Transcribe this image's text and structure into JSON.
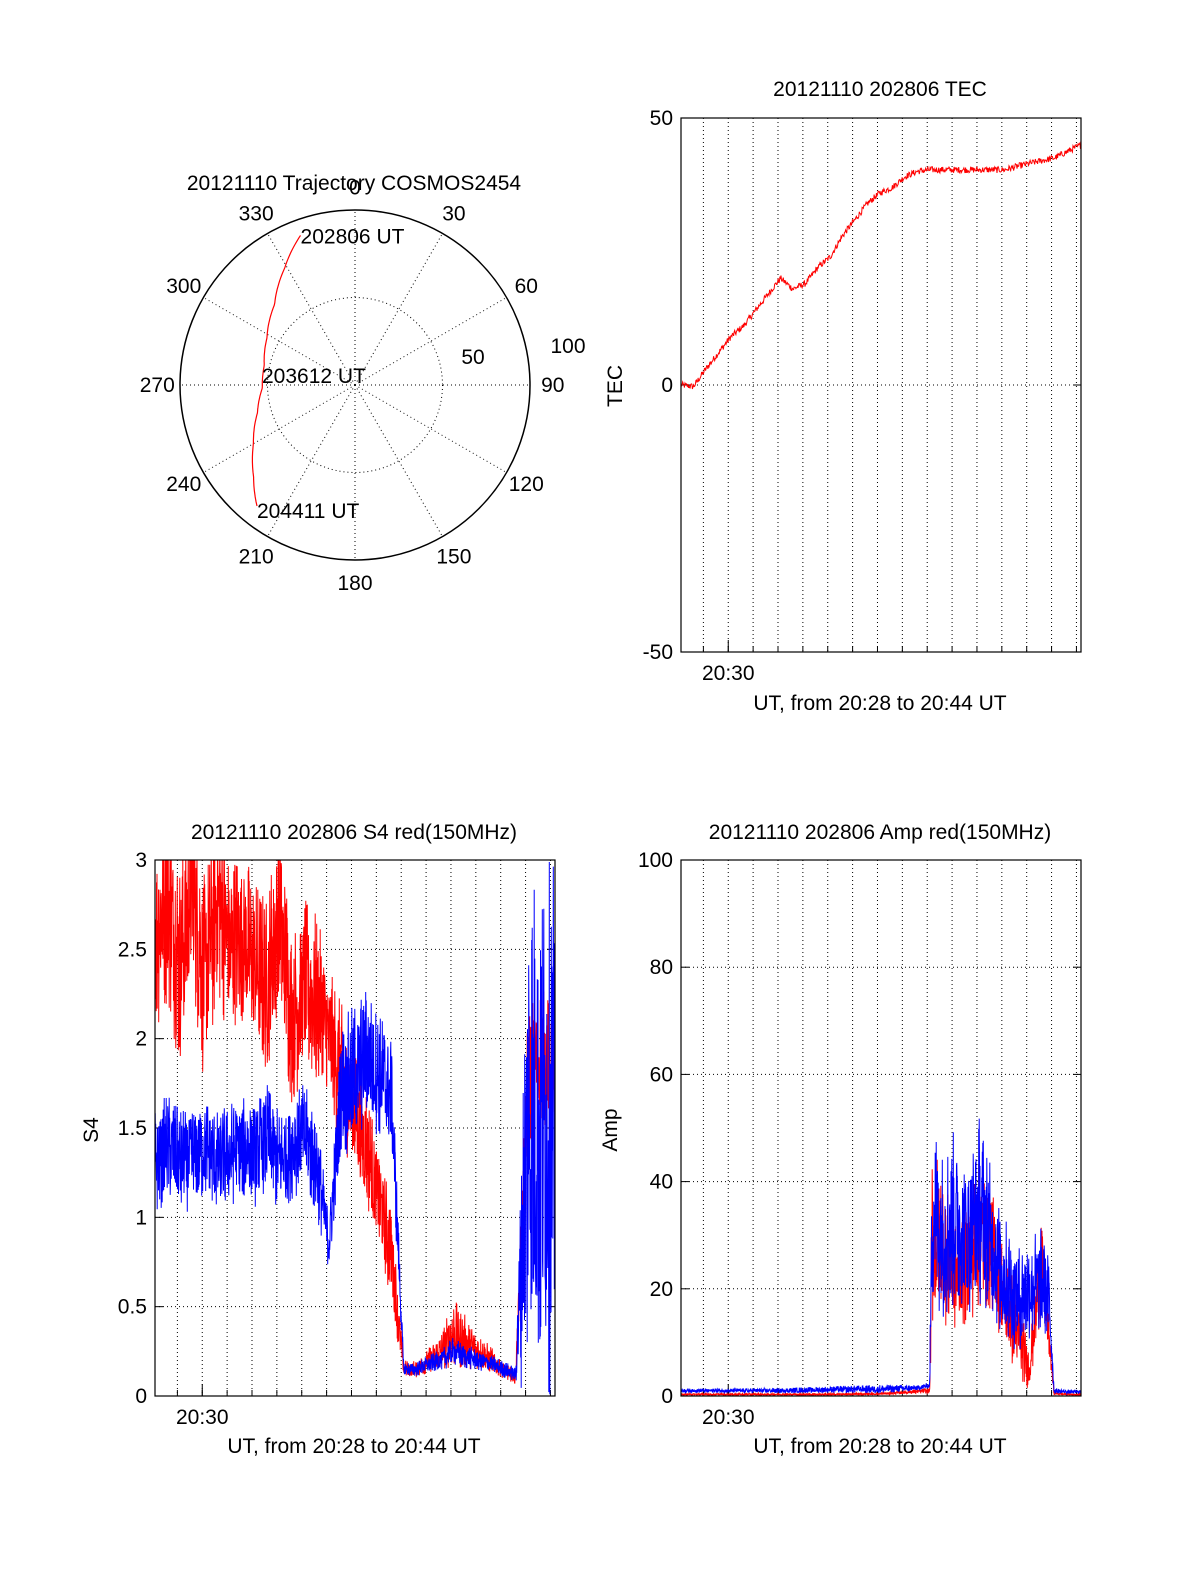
{
  "colors": {
    "red_series": "#ff0000",
    "blue_series": "#0000ff",
    "axes": "#000000",
    "grid": "#000000",
    "background": "#ffffff"
  },
  "chart_data": [
    {
      "id": "trajectory",
      "type": "polar",
      "title": "20121110 Trajectory COSMOS2454",
      "angle_labels": [
        {
          "angle": 0,
          "label": "0"
        },
        {
          "angle": 30,
          "label": "30"
        },
        {
          "angle": 60,
          "label": "60"
        },
        {
          "angle": 90,
          "label": "90"
        },
        {
          "angle": 120,
          "label": "120"
        },
        {
          "angle": 150,
          "label": "150"
        },
        {
          "angle": 180,
          "label": "180"
        },
        {
          "angle": 210,
          "label": "210"
        },
        {
          "angle": 240,
          "label": "240"
        },
        {
          "angle": 270,
          "label": "270"
        },
        {
          "angle": 300,
          "label": "300"
        },
        {
          "angle": 330,
          "label": "330"
        }
      ],
      "radial_labels": [
        "50",
        "100"
      ],
      "radial_max": 100,
      "track": [
        {
          "az": 340,
          "r": 91
        },
        {
          "az": 329,
          "r": 78
        },
        {
          "az": 315,
          "r": 65
        },
        {
          "az": 298,
          "r": 57
        },
        {
          "az": 282,
          "r": 53
        },
        {
          "az": 268,
          "r": 53
        },
        {
          "az": 254,
          "r": 58
        },
        {
          "az": 240,
          "r": 67
        },
        {
          "az": 228,
          "r": 78
        },
        {
          "az": 219,
          "r": 89
        }
      ],
      "track_color": "red",
      "annotations": [
        {
          "text": "202806 UT",
          "at": "start"
        },
        {
          "text": "203612 UT",
          "at": "middle"
        },
        {
          "text": "204411 UT",
          "at": "end"
        }
      ]
    },
    {
      "id": "tec",
      "type": "line",
      "title": "20121110 202806 TEC",
      "xlabel": "UT, from 20:28 to 20:44 UT",
      "ylabel": "TEC",
      "xlim": [
        "20:28:06",
        "20:44:11"
      ],
      "ylim": [
        -50,
        50
      ],
      "yticks": [
        "-50",
        "0",
        "50"
      ],
      "xtick_labels": [
        {
          "time": "20:30",
          "label": "20:30"
        }
      ],
      "grid": true,
      "series": [
        {
          "color": "red",
          "time_min": [
            0,
            0.5,
            1,
            1.5,
            2,
            2.5,
            3,
            3.5,
            4,
            4.5,
            5,
            5.5,
            6,
            6.5,
            7,
            7.5,
            8,
            8.5,
            9,
            9.5,
            10,
            11,
            12,
            13,
            14,
            15,
            16.1
          ],
          "values": [
            0,
            -0.3,
            3,
            6,
            9,
            11,
            14,
            17,
            20,
            18,
            19,
            22,
            24,
            28,
            31,
            34,
            36,
            37,
            39,
            40,
            40.3,
            40.3,
            40.3,
            40.3,
            41.5,
            42.5,
            45
          ]
        }
      ]
    },
    {
      "id": "s4",
      "type": "line",
      "title": "20121110 202806 S4 red(150MHz)",
      "xlabel": "UT, from 20:28 to 20:44 UT",
      "ylabel": "S4",
      "xlim": [
        "20:28:06",
        "20:44:11"
      ],
      "ylim": [
        0,
        3
      ],
      "yticks": [
        "0",
        "0.5",
        "1",
        "1.5",
        "2",
        "2.5",
        "3"
      ],
      "xtick_labels": [
        {
          "time": "20:30",
          "label": "20:30"
        }
      ],
      "grid": true,
      "series": [
        {
          "color": "red",
          "time_min": [
            0,
            0.5,
            1,
            1.5,
            2,
            2.5,
            3,
            3.5,
            4,
            4.5,
            5,
            5.5,
            6,
            6.5,
            7,
            7.5,
            8,
            8.5,
            9,
            9.5,
            10,
            10.5,
            11,
            11.5,
            12,
            12.5,
            13,
            13.5,
            14,
            14.5,
            15,
            15.5,
            16
          ],
          "mid": [
            2.6,
            2.8,
            2.4,
            2.9,
            2.3,
            2.8,
            2.5,
            2.6,
            2.4,
            2.3,
            2.7,
            2.1,
            2.3,
            2.2,
            2.0,
            1.8,
            1.6,
            1.4,
            1.1,
            0.8,
            0.15,
            0.15,
            0.2,
            0.25,
            0.35,
            0.3,
            0.25,
            0.2,
            0.15,
            0.1,
            1.8,
            1.9,
            1.8
          ],
          "spread": [
            0.6,
            0.6,
            0.6,
            0.6,
            0.6,
            0.6,
            0.5,
            0.5,
            0.5,
            0.5,
            0.6,
            0.5,
            0.5,
            0.5,
            0.4,
            0.4,
            0.35,
            0.35,
            0.3,
            0.3,
            0.05,
            0.05,
            0.07,
            0.1,
            0.2,
            0.15,
            0.1,
            0.08,
            0.05,
            0.04,
            0.4,
            0.4,
            0.4
          ]
        },
        {
          "color": "blue",
          "time_min": [
            0,
            0.5,
            1,
            1.5,
            2,
            2.5,
            3,
            3.5,
            4,
            4.5,
            5,
            5.5,
            6,
            6.5,
            7,
            7.5,
            8,
            8.5,
            9,
            9.5,
            10,
            10.5,
            11,
            11.5,
            12,
            12.5,
            13,
            13.5,
            14,
            14.5,
            15,
            15.5,
            16
          ],
          "mid": [
            1.3,
            1.4,
            1.3,
            1.35,
            1.4,
            1.3,
            1.35,
            1.4,
            1.35,
            1.45,
            1.3,
            1.4,
            1.45,
            1.3,
            0.85,
            1.7,
            1.8,
            1.9,
            1.8,
            1.7,
            0.15,
            0.15,
            0.18,
            0.2,
            0.25,
            0.22,
            0.2,
            0.18,
            0.15,
            0.12,
            1.5,
            1.5,
            1.5
          ],
          "spread": [
            0.3,
            0.3,
            0.3,
            0.3,
            0.3,
            0.3,
            0.3,
            0.3,
            0.3,
            0.3,
            0.3,
            0.3,
            0.3,
            0.3,
            0.15,
            0.4,
            0.4,
            0.4,
            0.35,
            0.35,
            0.04,
            0.04,
            0.05,
            0.06,
            0.08,
            0.07,
            0.06,
            0.05,
            0.05,
            0.04,
            1.5,
            1.5,
            1.5
          ]
        }
      ]
    },
    {
      "id": "amp",
      "type": "line",
      "title": "20121110 202806 Amp red(150MHz)",
      "xlabel": "UT, from 20:28 to 20:44 UT",
      "ylabel": "Amp",
      "xlim": [
        "20:28:06",
        "20:44:11"
      ],
      "ylim": [
        0,
        100
      ],
      "yticks": [
        "0",
        "20",
        "40",
        "60",
        "80",
        "100"
      ],
      "xtick_labels": [
        {
          "time": "20:30",
          "label": "20:30"
        }
      ],
      "grid": true,
      "series": [
        {
          "color": "red",
          "time_min": [
            0,
            2,
            4,
            6,
            8,
            10,
            10.1,
            10.5,
            11,
            11.5,
            12,
            12.5,
            13,
            13.5,
            14,
            14.5,
            15,
            15.5,
            16
          ],
          "mid": [
            0.3,
            0.3,
            0.3,
            0.3,
            0.4,
            1,
            30,
            28,
            22,
            25,
            30,
            28,
            18,
            12,
            5,
            25,
            0.5,
            0.3,
            0.3
          ],
          "spread": [
            0.2,
            0.2,
            0.2,
            0.2,
            0.2,
            0.5,
            18,
            15,
            10,
            12,
            14,
            12,
            10,
            8,
            4,
            10,
            0.3,
            0.2,
            0.2
          ]
        },
        {
          "color": "blue",
          "time_min": [
            0,
            2,
            4,
            6,
            8,
            9.5,
            10,
            10.1,
            10.5,
            11,
            11.5,
            12,
            12.5,
            13,
            13.5,
            14,
            14.5,
            14.8,
            15,
            15.5,
            16
          ],
          "mid": [
            1,
            1,
            1,
            1.2,
            1.3,
            1.5,
            2,
            35,
            30,
            33,
            30,
            35,
            28,
            22,
            18,
            20,
            22,
            18,
            1,
            0.8,
            0.8
          ],
          "spread": [
            0.4,
            0.4,
            0.5,
            0.6,
            0.8,
            0.6,
            0.5,
            18,
            16,
            17,
            15,
            18,
            14,
            12,
            10,
            10,
            10,
            8,
            0.5,
            0.4,
            0.4
          ]
        }
      ]
    }
  ]
}
